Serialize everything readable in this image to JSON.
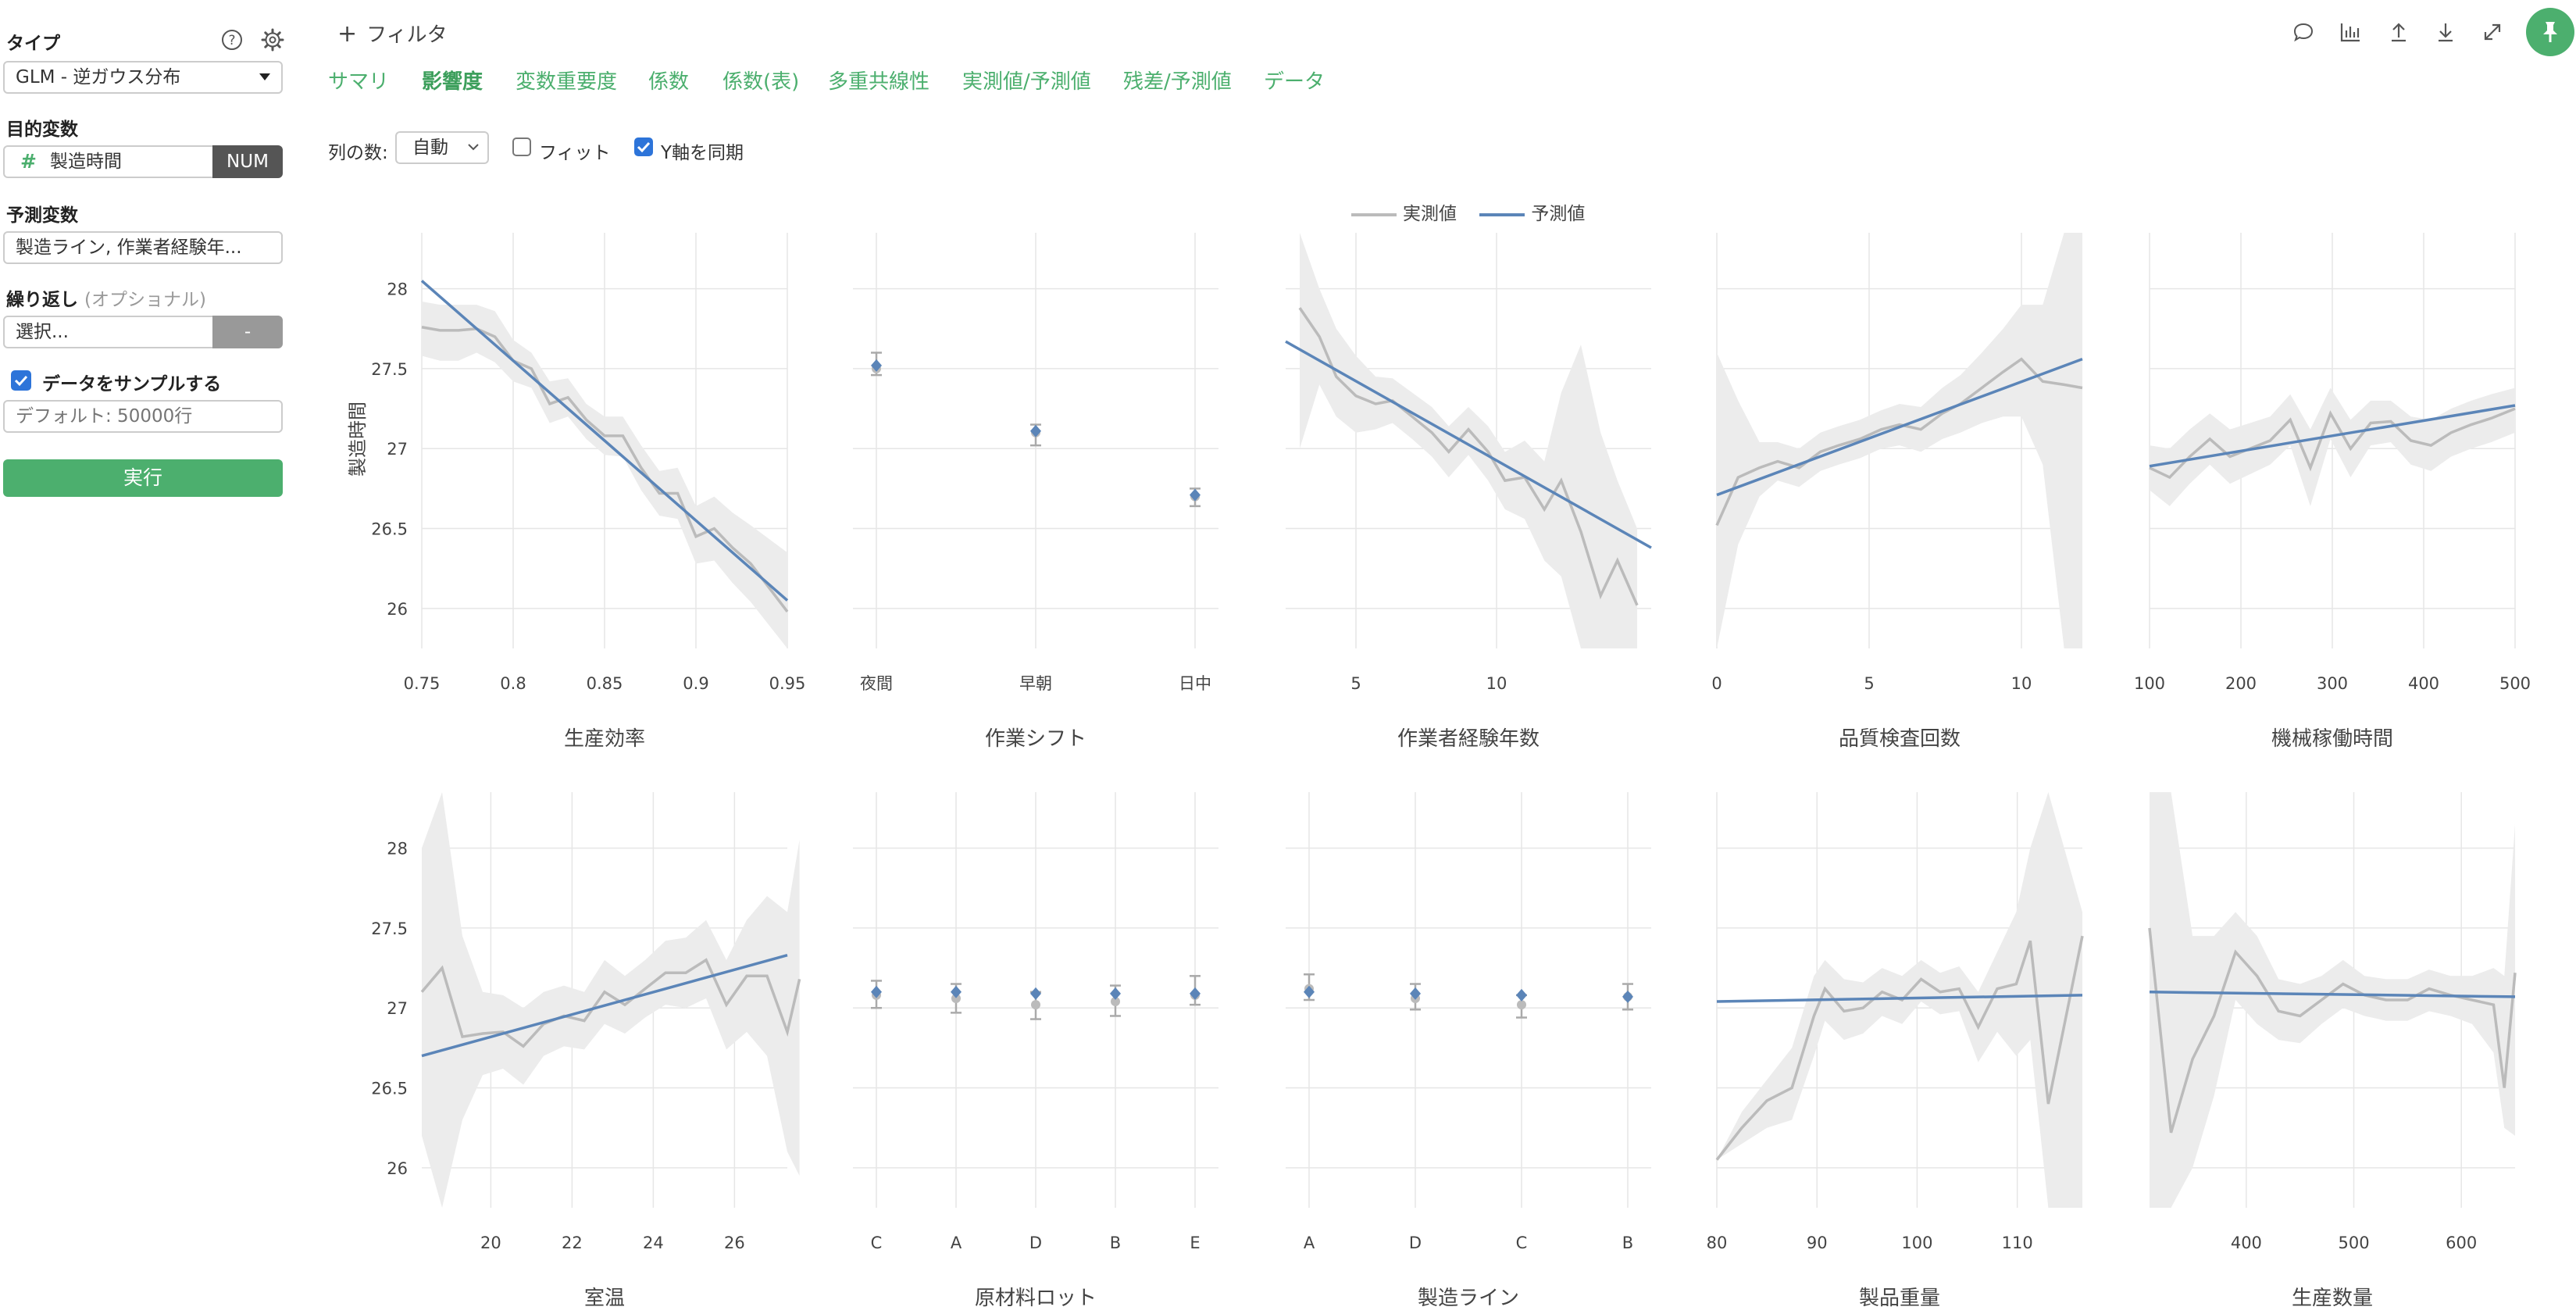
{
  "sidebar": {
    "type_label": "タイプ",
    "type_value": "GLM - 逆ガウス分布",
    "target_label": "目的変数",
    "target_value": "製造時間",
    "target_badge": "NUM",
    "predictor_label": "予測変数",
    "predictor_value": "製造ライン, 作業者経験年...",
    "repeat_label": "繰り返し",
    "repeat_optional": "(オプショナル)",
    "repeat_select": "選択...",
    "repeat_button": "-",
    "sample_label": "データをサンプルする",
    "sample_placeholder": "デフォルト: 50000行",
    "run_button": "実行"
  },
  "toolbar": {
    "filter_label": "フィルタ"
  },
  "tabs": [
    {
      "label": "サマリ"
    },
    {
      "label": "影響度"
    },
    {
      "label": "変数重要度"
    },
    {
      "label": "係数"
    },
    {
      "label": "係数(表)"
    },
    {
      "label": "多重共線性"
    },
    {
      "label": "実測値/予測値"
    },
    {
      "label": "残差/予測値"
    },
    {
      "label": "データ"
    }
  ],
  "active_tab": "影響度",
  "options": {
    "columns_label": "列の数:",
    "columns_value": "自動",
    "fit_label": "フィット",
    "sync_y_label": "Y軸を同期"
  },
  "icons": [
    "comment-icon",
    "chart-icon",
    "upload-icon",
    "download-icon",
    "expand-icon",
    "pin-icon"
  ],
  "colors": {
    "accent": "#4caf6e",
    "predicted": "#5b85b8",
    "actual": "#bbbbbb",
    "band": "#ececec"
  },
  "chart_data": {
    "type": "line",
    "legend": [
      {
        "name": "実測値",
        "color": "#bbbbbb"
      },
      {
        "name": "予測値",
        "color": "#5b85b8"
      }
    ],
    "legend_position": "top-center",
    "ylabel": "製造時間",
    "ylim": [
      25.75,
      28.35
    ],
    "yticks": [
      26,
      26.5,
      27,
      27.5,
      28
    ],
    "grid": true,
    "panels": [
      {
        "title": "生産効率",
        "kind": "num",
        "xlim": [
          0.75,
          0.95
        ],
        "xticks": [
          0.75,
          0.8,
          0.85,
          0.9,
          0.95
        ],
        "ytick_labels": true,
        "pred": [
          [
            0.75,
            28.05
          ],
          [
            0.95,
            26.05
          ]
        ],
        "actual": [
          [
            0.75,
            27.76
          ],
          [
            0.76,
            27.74
          ],
          [
            0.77,
            27.74
          ],
          [
            0.78,
            27.75
          ],
          [
            0.79,
            27.7
          ],
          [
            0.8,
            27.55
          ],
          [
            0.81,
            27.5
          ],
          [
            0.82,
            27.28
          ],
          [
            0.83,
            27.32
          ],
          [
            0.84,
            27.18
          ],
          [
            0.85,
            27.08
          ],
          [
            0.86,
            27.08
          ],
          [
            0.87,
            26.88
          ],
          [
            0.88,
            26.72
          ],
          [
            0.89,
            26.72
          ],
          [
            0.9,
            26.45
          ],
          [
            0.91,
            26.5
          ],
          [
            0.92,
            26.38
          ],
          [
            0.93,
            26.28
          ],
          [
            0.95,
            25.98
          ]
        ],
        "band_hi": [
          27.92,
          27.9,
          27.9,
          27.9,
          27.86,
          27.68,
          27.6,
          27.42,
          27.44,
          27.28,
          27.2,
          27.2,
          27.02,
          26.86,
          26.88,
          26.64,
          26.7,
          26.6,
          26.52,
          26.35
        ],
        "band_lo": [
          27.58,
          27.55,
          27.55,
          27.6,
          27.54,
          27.42,
          27.38,
          27.16,
          27.2,
          27.06,
          26.96,
          26.95,
          26.74,
          26.58,
          26.56,
          26.28,
          26.3,
          26.16,
          26.04,
          25.75
        ]
      },
      {
        "title": "作業シフト",
        "kind": "cat",
        "xticks": [
          "夜間",
          "早朝",
          "日中"
        ],
        "pred": [
          27.52,
          27.11,
          26.71
        ],
        "actual": [
          27.5,
          27.1,
          26.7
        ],
        "err_hi": [
          27.6,
          27.15,
          26.75
        ],
        "err_lo": [
          27.46,
          27.02,
          26.64
        ]
      },
      {
        "title": "作業者経験年数",
        "kind": "num",
        "xlim": [
          2.5,
          15.5
        ],
        "xticks": [
          5,
          10
        ],
        "pred": [
          [
            2.5,
            27.67
          ],
          [
            15.5,
            26.38
          ]
        ],
        "actual": [
          [
            3,
            27.88
          ],
          [
            3.7,
            27.7
          ],
          [
            4.3,
            27.45
          ],
          [
            5,
            27.33
          ],
          [
            5.7,
            27.28
          ],
          [
            6.3,
            27.3
          ],
          [
            7,
            27.2
          ],
          [
            7.7,
            27.1
          ],
          [
            8.3,
            26.98
          ],
          [
            9,
            27.12
          ],
          [
            9.7,
            26.98
          ],
          [
            10.3,
            26.8
          ],
          [
            11,
            26.82
          ],
          [
            11.7,
            26.62
          ],
          [
            12.3,
            26.8
          ],
          [
            13,
            26.48
          ],
          [
            13.7,
            26.08
          ],
          [
            14.3,
            26.3
          ],
          [
            15,
            26.02
          ]
        ],
        "band_hi": [
          28.35,
          28.0,
          27.75,
          27.58,
          27.45,
          27.44,
          27.35,
          27.26,
          27.14,
          27.26,
          27.14,
          26.98,
          27.05,
          26.92,
          27.35,
          27.65,
          27.1,
          26.8,
          26.5
        ],
        "band_lo": [
          27.0,
          27.4,
          27.2,
          27.1,
          27.12,
          27.16,
          27.06,
          26.95,
          26.82,
          26.96,
          26.8,
          26.62,
          26.56,
          26.3,
          26.2,
          25.75,
          25.75,
          25.75,
          25.75
        ]
      },
      {
        "title": "品質検査回数",
        "kind": "num",
        "xlim": [
          0,
          12
        ],
        "xticks": [
          0,
          5,
          10
        ],
        "pred": [
          [
            0,
            26.71
          ],
          [
            12,
            27.56
          ]
        ],
        "actual": [
          [
            0,
            26.52
          ],
          [
            0.7,
            26.82
          ],
          [
            1.4,
            26.88
          ],
          [
            2,
            26.92
          ],
          [
            2.7,
            26.88
          ],
          [
            3.4,
            26.98
          ],
          [
            4,
            27.02
          ],
          [
            4.7,
            27.06
          ],
          [
            5.4,
            27.12
          ],
          [
            6,
            27.15
          ],
          [
            6.7,
            27.12
          ],
          [
            7.4,
            27.22
          ],
          [
            8,
            27.28
          ],
          [
            8.7,
            27.38
          ],
          [
            9.4,
            27.48
          ],
          [
            10,
            27.56
          ],
          [
            10.7,
            27.42
          ],
          [
            11.4,
            27.4
          ],
          [
            12,
            27.38
          ]
        ],
        "band_hi": [
          27.6,
          27.3,
          27.04,
          27.04,
          27.0,
          27.1,
          27.14,
          27.18,
          27.24,
          27.28,
          27.26,
          27.38,
          27.46,
          27.6,
          27.75,
          27.9,
          27.9,
          28.35,
          28.35
        ],
        "band_lo": [
          25.75,
          26.4,
          26.7,
          26.8,
          26.76,
          26.86,
          26.9,
          26.94,
          27.0,
          27.02,
          26.98,
          27.06,
          27.1,
          27.16,
          27.2,
          27.2,
          26.9,
          25.75,
          25.75
        ]
      },
      {
        "title": "機械稼働時間",
        "kind": "num",
        "xlim": [
          100,
          500
        ],
        "xticks": [
          100,
          200,
          300,
          400,
          500
        ],
        "pred": [
          [
            100,
            26.89
          ],
          [
            500,
            27.27
          ]
        ],
        "actual": [
          [
            100,
            26.88
          ],
          [
            122,
            26.82
          ],
          [
            144,
            26.95
          ],
          [
            166,
            27.06
          ],
          [
            188,
            26.95
          ],
          [
            210,
            27.0
          ],
          [
            232,
            27.05
          ],
          [
            254,
            27.18
          ],
          [
            276,
            26.88
          ],
          [
            298,
            27.22
          ],
          [
            320,
            27.0
          ],
          [
            342,
            27.16
          ],
          [
            364,
            27.17
          ],
          [
            386,
            27.05
          ],
          [
            408,
            27.02
          ],
          [
            430,
            27.1
          ],
          [
            452,
            27.15
          ],
          [
            474,
            27.19
          ],
          [
            500,
            27.25
          ]
        ],
        "band_hi": [
          27.02,
          27.0,
          27.12,
          27.22,
          27.12,
          27.16,
          27.2,
          27.34,
          27.12,
          27.38,
          27.18,
          27.3,
          27.3,
          27.2,
          27.18,
          27.25,
          27.3,
          27.34,
          27.38
        ],
        "band_lo": [
          26.74,
          26.64,
          26.78,
          26.9,
          26.78,
          26.84,
          26.9,
          27.02,
          26.64,
          27.06,
          26.82,
          27.02,
          27.04,
          26.9,
          26.86,
          26.95,
          27.0,
          27.04,
          27.1
        ]
      },
      {
        "title": "室温",
        "kind": "num",
        "xlim": [
          18.3,
          27.3
        ],
        "xticks": [
          20,
          22,
          24,
          26
        ],
        "ytick_labels": true,
        "pred": [
          [
            18.3,
            26.7
          ],
          [
            27.3,
            27.33
          ]
        ],
        "actual": [
          [
            18.3,
            27.1
          ],
          [
            18.8,
            27.25
          ],
          [
            19.3,
            26.82
          ],
          [
            19.8,
            26.84
          ],
          [
            20.3,
            26.85
          ],
          [
            20.8,
            26.76
          ],
          [
            21.3,
            26.9
          ],
          [
            21.8,
            26.95
          ],
          [
            22.3,
            26.92
          ],
          [
            22.8,
            27.1
          ],
          [
            23.3,
            27.02
          ],
          [
            23.8,
            27.12
          ],
          [
            24.3,
            27.22
          ],
          [
            24.8,
            27.22
          ],
          [
            25.3,
            27.3
          ],
          [
            25.8,
            27.02
          ],
          [
            26.3,
            27.2
          ],
          [
            26.8,
            27.2
          ],
          [
            27.3,
            26.85
          ],
          [
            27.6,
            27.18
          ]
        ],
        "band_hi": [
          28.0,
          28.35,
          27.45,
          27.1,
          27.08,
          27.0,
          27.1,
          27.14,
          27.1,
          27.3,
          27.2,
          27.3,
          27.42,
          27.44,
          27.55,
          27.3,
          27.55,
          27.7,
          27.6,
          28.05
        ],
        "band_lo": [
          26.2,
          25.75,
          26.3,
          26.58,
          26.62,
          26.52,
          26.7,
          26.76,
          26.74,
          26.9,
          26.84,
          26.94,
          27.02,
          27.0,
          27.06,
          26.74,
          26.85,
          26.7,
          26.1,
          25.95
        ]
      },
      {
        "title": "原材料ロット",
        "kind": "cat",
        "xticks": [
          "C",
          "A",
          "D",
          "B",
          "E"
        ],
        "pred": [
          27.1,
          27.1,
          27.09,
          27.09,
          27.09
        ],
        "actual": [
          27.08,
          27.06,
          27.02,
          27.04,
          27.08
        ],
        "err_hi": [
          27.17,
          27.15,
          27.1,
          27.14,
          27.2
        ],
        "err_lo": [
          27.0,
          26.97,
          26.93,
          26.95,
          27.02
        ]
      },
      {
        "title": "製造ライン",
        "kind": "cat",
        "xticks": [
          "A",
          "D",
          "C",
          "B"
        ],
        "pred": [
          27.1,
          27.09,
          27.08,
          27.07
        ],
        "actual": [
          27.12,
          27.06,
          27.02,
          27.07
        ],
        "err_hi": [
          27.21,
          27.15,
          27.08,
          27.15
        ],
        "err_lo": [
          27.05,
          26.99,
          26.94,
          26.99
        ]
      },
      {
        "title": "製品重量",
        "kind": "num",
        "xlim": [
          80,
          116.5
        ],
        "xticks": [
          80,
          90,
          100,
          110
        ],
        "pred": [
          [
            80,
            27.04
          ],
          [
            116.5,
            27.08
          ]
        ],
        "actual": [
          [
            80,
            26.05
          ],
          [
            82.5,
            26.25
          ],
          [
            85,
            26.42
          ],
          [
            87.5,
            26.5
          ],
          [
            89.7,
            26.95
          ],
          [
            90.8,
            27.12
          ],
          [
            92.7,
            26.98
          ],
          [
            94.6,
            27.0
          ],
          [
            96.5,
            27.1
          ],
          [
            98.5,
            27.05
          ],
          [
            100.4,
            27.18
          ],
          [
            102.3,
            27.1
          ],
          [
            104.2,
            27.12
          ],
          [
            106.1,
            26.88
          ],
          [
            108,
            27.12
          ],
          [
            109.9,
            27.15
          ],
          [
            111.3,
            27.42
          ],
          [
            113.1,
            26.4
          ],
          [
            116.5,
            27.45
          ]
        ],
        "band_hi": [
          26.05,
          26.35,
          26.55,
          26.75,
          27.2,
          27.3,
          27.18,
          27.16,
          27.25,
          27.2,
          27.3,
          27.22,
          27.26,
          27.1,
          27.35,
          27.6,
          28.0,
          28.35,
          27.6
        ],
        "band_lo": [
          26.05,
          26.15,
          26.25,
          26.3,
          26.7,
          26.92,
          26.8,
          26.84,
          26.95,
          26.9,
          27.04,
          26.96,
          26.98,
          26.66,
          26.85,
          26.7,
          26.8,
          25.75,
          25.75
        ]
      },
      {
        "title": "生産数量",
        "kind": "num",
        "xlim": [
          310,
          650
        ],
        "xticks": [
          400,
          500,
          600
        ],
        "pred": [
          [
            310,
            27.1
          ],
          [
            650,
            27.07
          ]
        ],
        "actual": [
          [
            310,
            27.5
          ],
          [
            330,
            26.22
          ],
          [
            350,
            26.68
          ],
          [
            370,
            26.95
          ],
          [
            390,
            27.35
          ],
          [
            410,
            27.2
          ],
          [
            430,
            26.98
          ],
          [
            450,
            26.95
          ],
          [
            470,
            27.05
          ],
          [
            490,
            27.15
          ],
          [
            510,
            27.08
          ],
          [
            530,
            27.05
          ],
          [
            550,
            27.05
          ],
          [
            570,
            27.12
          ],
          [
            590,
            27.08
          ],
          [
            610,
            27.05
          ],
          [
            630,
            27.02
          ],
          [
            640,
            26.5
          ],
          [
            650,
            27.22
          ]
        ],
        "band_hi": [
          28.35,
          28.35,
          27.45,
          27.45,
          27.6,
          27.45,
          27.18,
          27.15,
          27.2,
          27.3,
          27.2,
          27.18,
          27.18,
          27.24,
          27.2,
          27.2,
          27.25,
          27.2,
          28.15
        ],
        "band_lo": [
          25.75,
          25.75,
          26.0,
          26.45,
          27.05,
          26.9,
          26.8,
          26.78,
          26.9,
          27.0,
          26.95,
          26.92,
          26.92,
          26.98,
          26.95,
          26.9,
          26.72,
          26.25,
          26.2
        ]
      }
    ]
  }
}
